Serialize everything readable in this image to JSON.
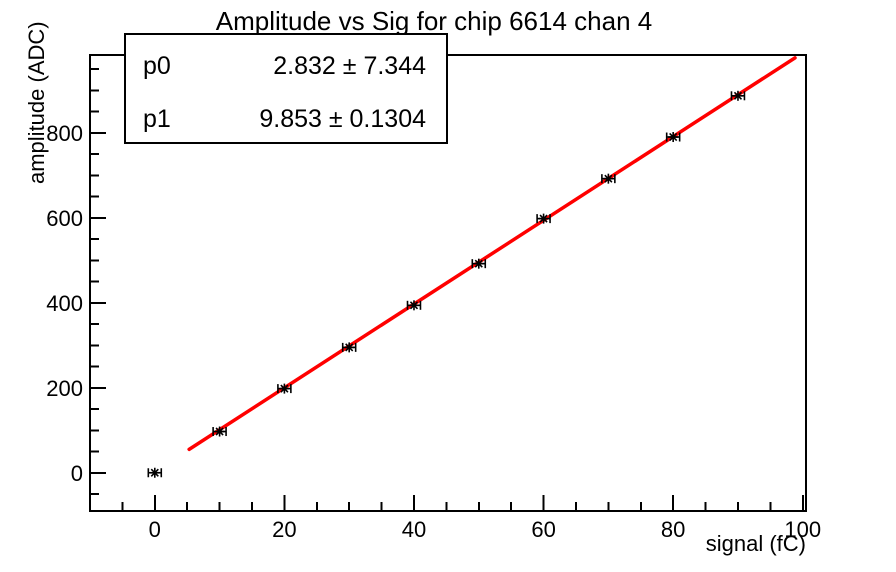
{
  "window": {
    "background": "#ffffff",
    "foreground": "#000000"
  },
  "header": {
    "title": "Amplitude vs Sig for chip 6614 chan 4"
  },
  "stats_box": {
    "rows": [
      {
        "name": "p0",
        "value": "2.832 ± 7.344"
      },
      {
        "name": "p1",
        "value": "9.853 ± 0.1304"
      }
    ]
  },
  "chart_data": {
    "type": "scatter",
    "title": "Amplitude vs Sig for chip 6614 chan 4",
    "xlabel": "signal (fC)",
    "ylabel": "amplitude (ADC)",
    "xlim": [
      -10,
      100.5
    ],
    "ylim": [
      -90,
      983
    ],
    "x_ticks": [
      0,
      20,
      40,
      60,
      80,
      100
    ],
    "y_ticks": [
      0,
      200,
      400,
      600,
      800
    ],
    "x_minor_step": 5,
    "y_minor_step": 50,
    "grid": false,
    "legend": false,
    "marker": "asterisk-with-x-error-bars",
    "points": {
      "x": [
        0,
        10,
        20,
        30,
        40,
        50,
        60,
        70,
        80,
        90
      ],
      "y": [
        0,
        97,
        198,
        295,
        394,
        492,
        598,
        692,
        790,
        887
      ],
      "xerr": 1
    },
    "fit": {
      "type": "linear",
      "p0": 2.832,
      "p1": 9.853,
      "range": [
        5.3,
        98.8
      ],
      "color": "#ff0000"
    },
    "colors": {
      "axis": "#000000",
      "marker": "#000000",
      "background": "#ffffff",
      "fit_line": "#ff0000"
    }
  }
}
